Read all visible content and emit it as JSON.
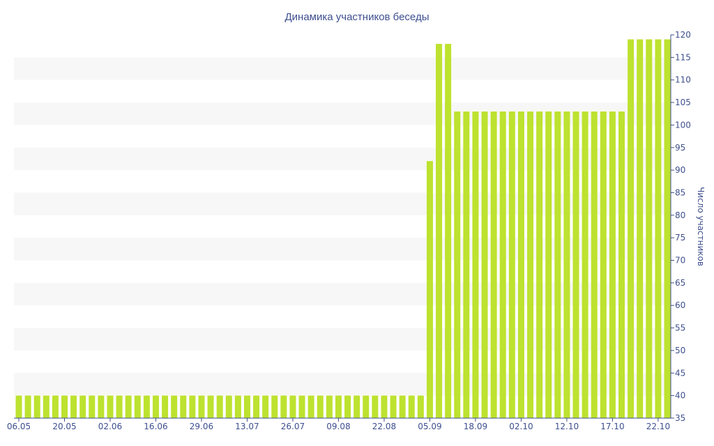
{
  "chart_data": {
    "type": "bar",
    "title": "Динамика участников беседы",
    "xlabel": "",
    "ylabel": "Число участников",
    "ylim": [
      35,
      120
    ],
    "ytick_step": 5,
    "grid": "horizontal bands",
    "y_axis_position": "right",
    "colors": {
      "bar": "#bde22f",
      "band": "#f7f7f7",
      "text": "#3e4f8e",
      "axis": "#3e4f8e"
    },
    "x_tick_labels": [
      {
        "label": "06.05",
        "index": 0
      },
      {
        "label": "20.05",
        "index": 5
      },
      {
        "label": "02.06",
        "index": 10
      },
      {
        "label": "16.06",
        "index": 15
      },
      {
        "label": "29.06",
        "index": 20
      },
      {
        "label": "13.07",
        "index": 25
      },
      {
        "label": "26.07",
        "index": 30
      },
      {
        "label": "09.08",
        "index": 35
      },
      {
        "label": "22.08",
        "index": 40
      },
      {
        "label": "05.09",
        "index": 45
      },
      {
        "label": "18.09",
        "index": 50
      },
      {
        "label": "02.10",
        "index": 55
      },
      {
        "label": "12.10",
        "index": 60
      },
      {
        "label": "17.10",
        "index": 65
      },
      {
        "label": "22.10",
        "index": 70
      }
    ],
    "values": [
      40,
      40,
      40,
      40,
      40,
      40,
      40,
      40,
      40,
      40,
      40,
      40,
      40,
      40,
      40,
      40,
      40,
      40,
      40,
      40,
      40,
      40,
      40,
      40,
      40,
      40,
      40,
      40,
      40,
      40,
      40,
      40,
      40,
      40,
      40,
      40,
      40,
      40,
      40,
      40,
      40,
      40,
      40,
      40,
      40,
      92,
      118,
      118,
      103,
      103,
      103,
      103,
      103,
      103,
      103,
      103,
      103,
      103,
      103,
      103,
      103,
      103,
      103,
      103,
      103,
      103,
      103,
      119,
      119,
      119,
      119,
      119
    ]
  }
}
